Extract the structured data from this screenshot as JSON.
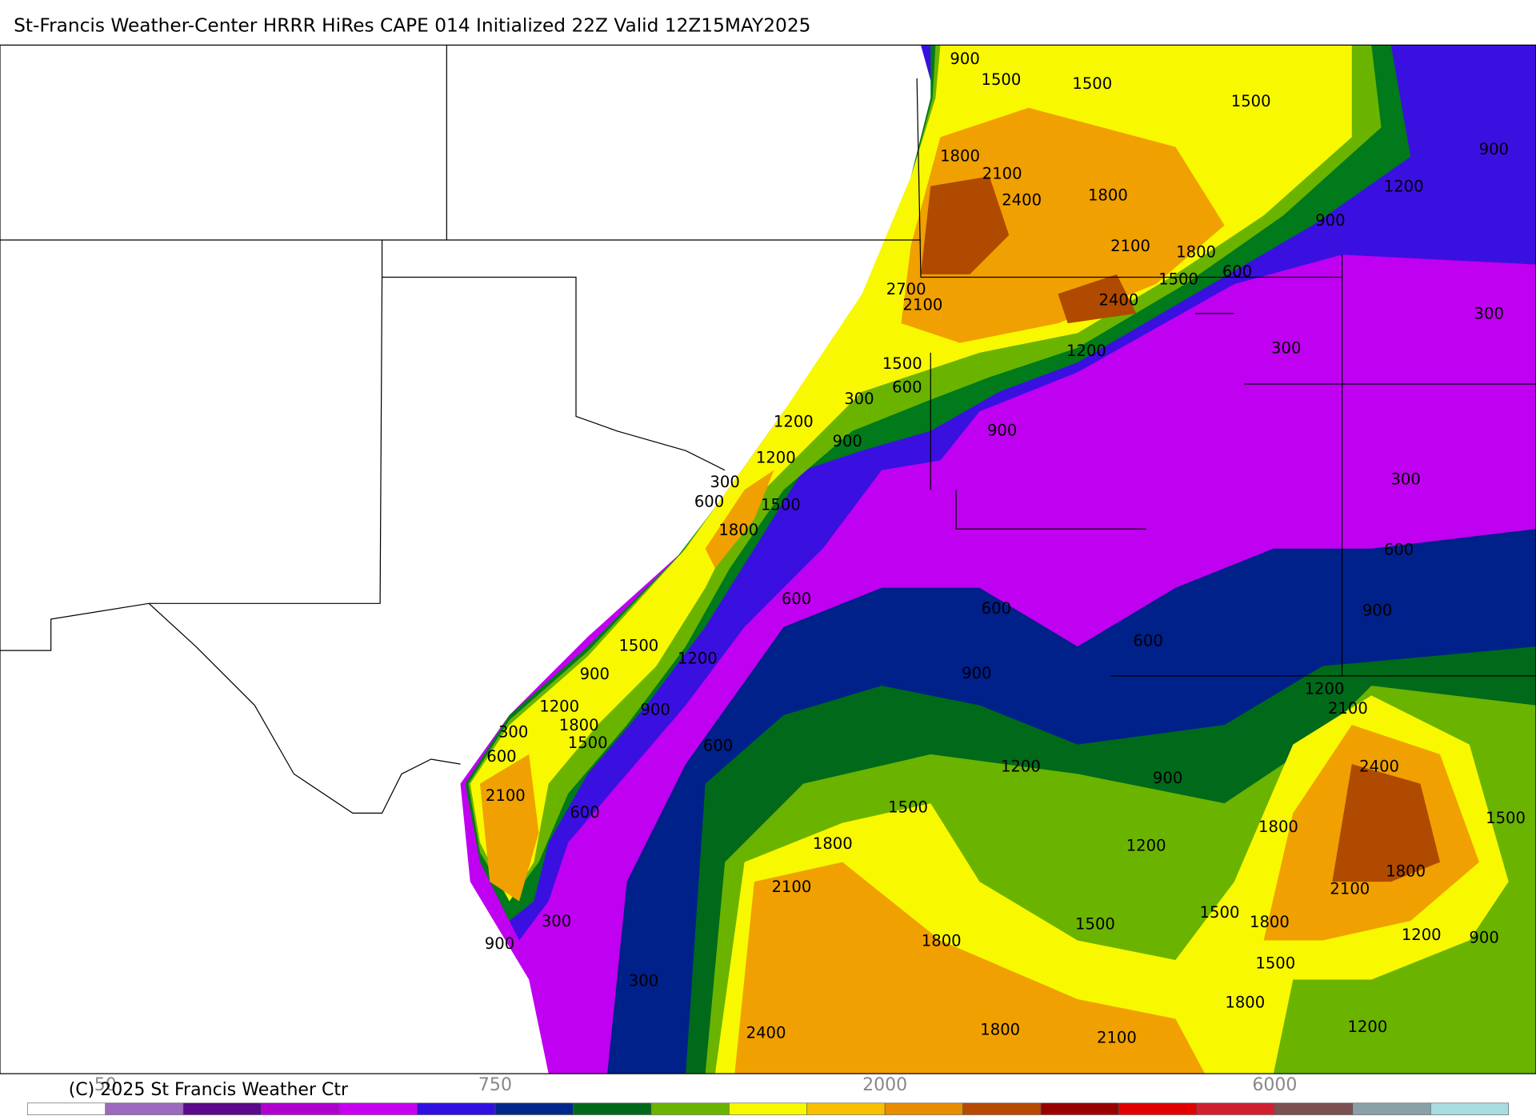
{
  "title": "St-Francis Weather-Center HRRR HiRes CAPE  014 Initialized  22Z Valid 12Z15MAY2025",
  "copyright": "(C) 2025 St Francis Weather Ctr",
  "colorbar": {
    "colors": [
      "#ffffff",
      "#9b6bbf",
      "#5a0a8a",
      "#b000d0",
      "#c800f0",
      "#3010e0",
      "#00288a",
      "#006a1a",
      "#6ab400",
      "#f8f800",
      "#f8c000",
      "#e88c00",
      "#b84a00",
      "#9a0000",
      "#e00000",
      "#d02030",
      "#7a5050",
      "#8aa0a8",
      "#a8dce0"
    ],
    "labels": [
      "50",
      "750",
      "2000",
      "6000"
    ]
  },
  "contour_labels": [
    "900",
    "1500",
    "1500",
    "1500",
    "900",
    "1800",
    "2100",
    "2400",
    "1800",
    "1200",
    "900",
    "2100",
    "1800",
    "600",
    "1500",
    "2700",
    "2100",
    "2400",
    "300",
    "300",
    "1200",
    "1500",
    "600",
    "300",
    "900",
    "1200",
    "900",
    "1200",
    "300",
    "600",
    "1500",
    "300",
    "1800",
    "600",
    "600",
    "600",
    "900",
    "600",
    "1500",
    "1200",
    "900",
    "900",
    "1200",
    "2100",
    "1200",
    "900",
    "300",
    "1800",
    "1500",
    "600",
    "600",
    "2400",
    "1200",
    "900",
    "2100",
    "1500",
    "600",
    "1500",
    "1800",
    "1800",
    "1200",
    "1800",
    "2100",
    "2100",
    "300",
    "1500",
    "1800",
    "1500",
    "1200",
    "900",
    "900",
    "1800",
    "1500",
    "300",
    "1800",
    "1800",
    "1200",
    "2100",
    "2400"
  ]
}
